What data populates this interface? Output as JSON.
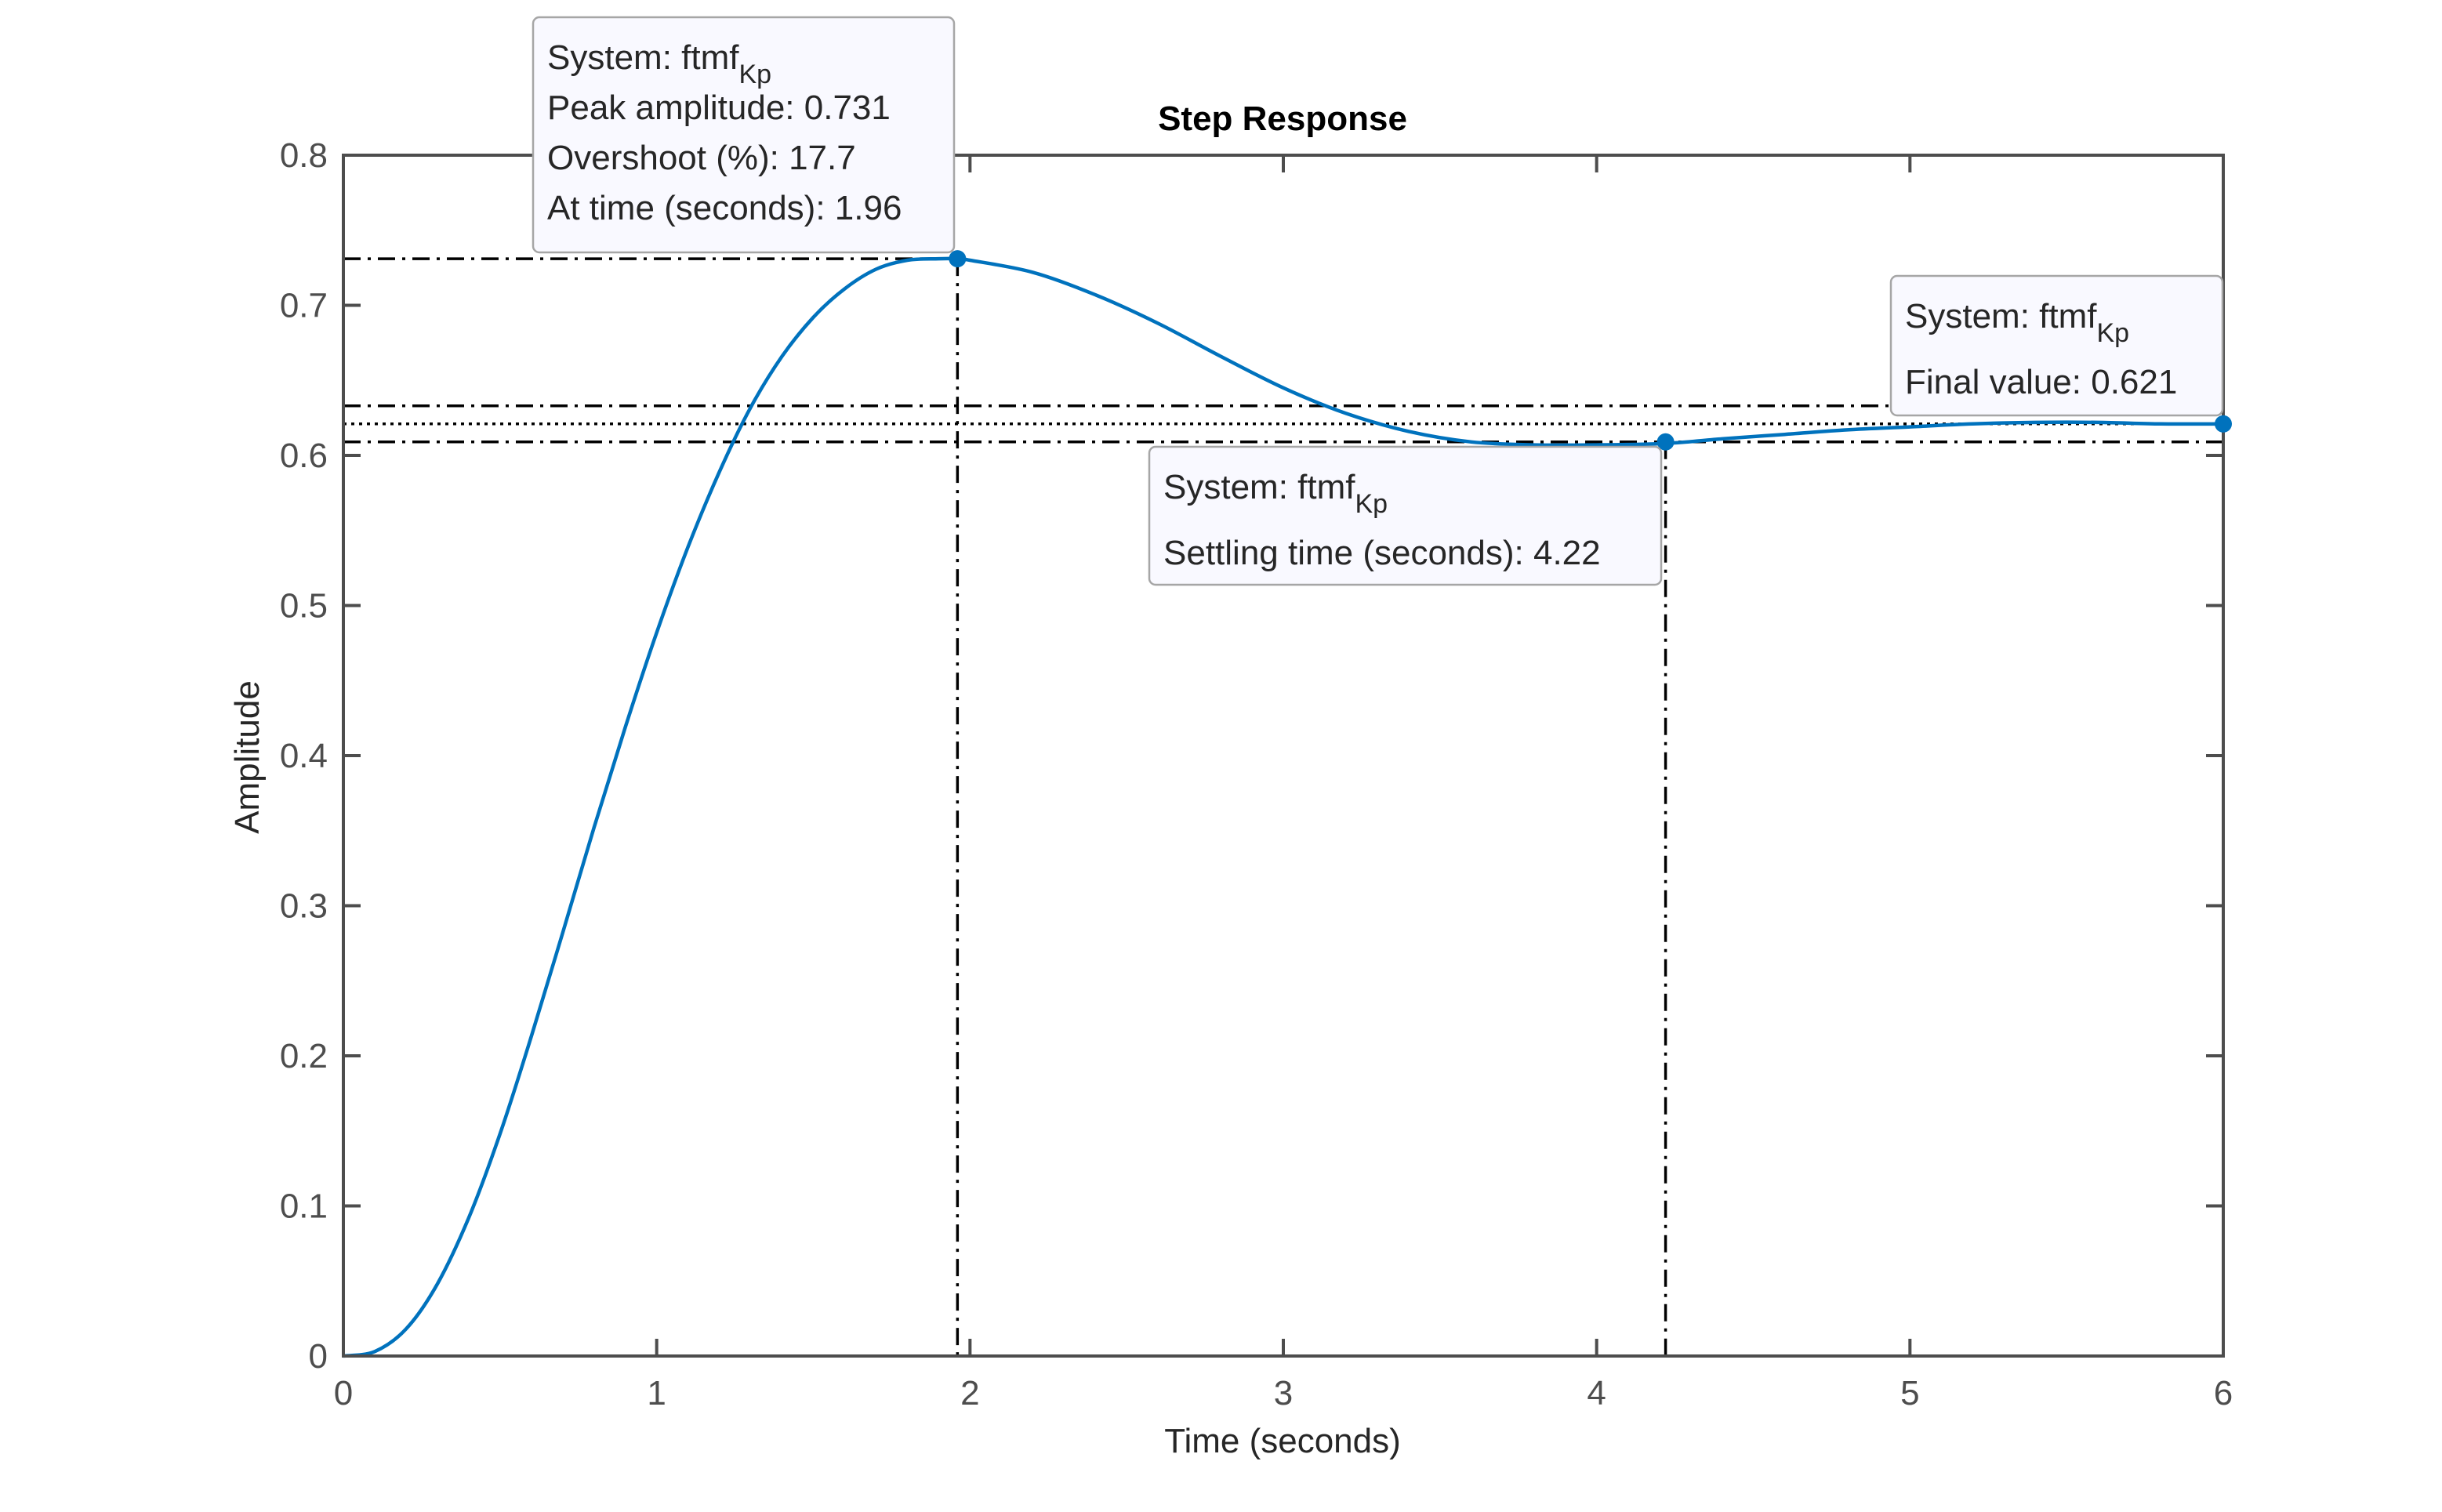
{
  "chart_data": {
    "type": "line",
    "title": "Step Response",
    "xlabel": "Time (seconds)",
    "ylabel": "Amplitude",
    "xlim": [
      0,
      6
    ],
    "ylim": [
      0,
      0.8
    ],
    "xticks": [
      0,
      1,
      2,
      3,
      4,
      5,
      6
    ],
    "xtick_labels": [
      "0",
      "1",
      "2",
      "3",
      "4",
      "5",
      "6"
    ],
    "yticks": [
      0,
      0.1,
      0.2,
      0.3,
      0.4,
      0.5,
      0.6,
      0.7,
      0.8
    ],
    "ytick_labels": [
      "0",
      "0.1",
      "0.2",
      "0.3",
      "0.4",
      "0.5",
      "0.6",
      "0.7",
      "0.8"
    ],
    "grid": false,
    "series": [
      {
        "color": "#0072BD",
        "x": [
          0,
          0.1,
          0.2,
          0.3,
          0.4,
          0.5,
          0.6,
          0.7,
          0.8,
          0.9,
          1.0,
          1.1,
          1.2,
          1.3,
          1.4,
          1.5,
          1.6,
          1.7,
          1.8,
          1.9,
          1.96,
          2.0,
          2.2,
          2.4,
          2.6,
          2.8,
          3.0,
          3.2,
          3.4,
          3.6,
          3.8,
          4.0,
          4.22,
          4.4,
          4.6,
          4.8,
          5.0,
          5.2,
          5.4,
          5.6,
          5.8,
          6.0
        ],
        "y": [
          0,
          0.003,
          0.018,
          0.048,
          0.092,
          0.148,
          0.213,
          0.282,
          0.352,
          0.419,
          0.482,
          0.539,
          0.589,
          0.632,
          0.666,
          0.692,
          0.711,
          0.724,
          0.73,
          0.731,
          0.731,
          0.73,
          0.722,
          0.707,
          0.688,
          0.666,
          0.645,
          0.628,
          0.616,
          0.609,
          0.607,
          0.607,
          0.608,
          0.611,
          0.614,
          0.617,
          0.619,
          0.621,
          0.622,
          0.622,
          0.621,
          0.621
        ]
      }
    ],
    "reference_lines": {
      "final_value": 0.621,
      "settling_band": [
        0.609,
        0.633
      ],
      "peak_amplitude": 0.731,
      "peak_time": 1.96,
      "settling_time": 4.22
    },
    "markers": [
      {
        "x": 1.96,
        "y": 0.731
      },
      {
        "x": 4.22,
        "y": 0.609
      },
      {
        "x": 6.0,
        "y": 0.621
      }
    ],
    "annotations": [
      {
        "anchor": "top-left",
        "lines": [
          {
            "text": "System: ftmf",
            "sub": "Kp"
          },
          {
            "text": "Peak amplitude: 0.731",
            "sub": ""
          },
          {
            "text": "Overshoot (%): 17.7",
            "sub": ""
          },
          {
            "text": "At time (seconds): 1.96",
            "sub": ""
          }
        ]
      },
      {
        "anchor": "middle",
        "lines": [
          {
            "text": "System: ftmf",
            "sub": "Kp"
          },
          {
            "text": "Settling time (seconds): 4.22",
            "sub": ""
          }
        ]
      },
      {
        "anchor": "right",
        "lines": [
          {
            "text": "System: ftmf",
            "sub": "Kp"
          },
          {
            "text": "Final value: 0.621",
            "sub": ""
          }
        ]
      }
    ]
  }
}
